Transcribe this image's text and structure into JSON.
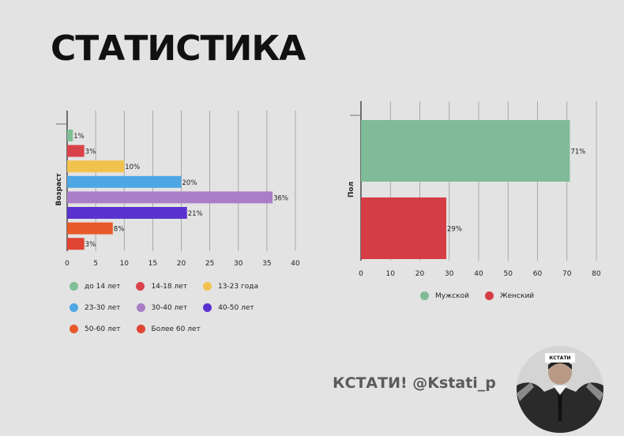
{
  "page": {
    "title": "СТАТИСТИКА",
    "brand": "КСТАТИ! @Kstati_p",
    "avatar_tag": "КСТАТИ"
  },
  "chart_data": [
    {
      "type": "bar",
      "orientation": "horizontal",
      "ylabel": "Возраст",
      "xlim": [
        0,
        40
      ],
      "xticks": [
        0,
        5,
        10,
        15,
        20,
        25,
        30,
        35,
        40
      ],
      "grid": true,
      "legend_position": "bottom",
      "categories": [
        "до 14 лет",
        "14-18 лет",
        "13-23 года",
        "23-30 лет",
        "30-40 лет",
        "40-50 лет",
        "50-60 лет",
        "Более 60 лет"
      ],
      "values": [
        1,
        3,
        10,
        20,
        36,
        21,
        8,
        3
      ],
      "labels": [
        "1%",
        "3%",
        "10%",
        "20%",
        "36%",
        "21%",
        "8%",
        "3%"
      ],
      "colors": [
        "#7fbf95",
        "#d8434a",
        "#f2c24f",
        "#4ea7e3",
        "#a97ec7",
        "#5a32cf",
        "#e85a2a",
        "#e04432"
      ]
    },
    {
      "type": "bar",
      "orientation": "horizontal",
      "ylabel": "Пол",
      "xlim": [
        0,
        80
      ],
      "xticks": [
        0,
        10,
        20,
        30,
        40,
        50,
        60,
        70,
        80
      ],
      "grid": true,
      "legend_position": "bottom",
      "categories": [
        "Мужской",
        "Женский"
      ],
      "values": [
        71,
        29
      ],
      "labels": [
        "71%",
        "29%"
      ],
      "colors": [
        "#7fbb98",
        "#d63c45"
      ]
    }
  ]
}
